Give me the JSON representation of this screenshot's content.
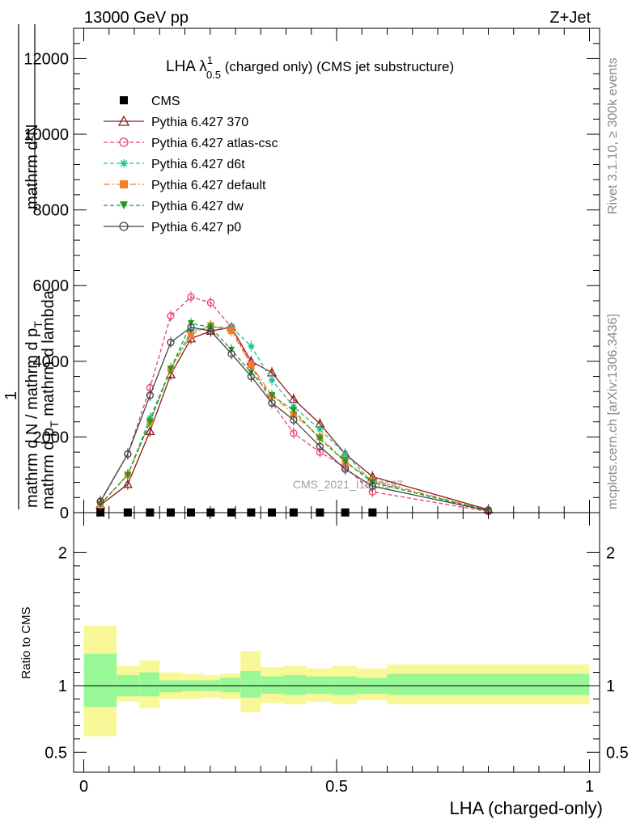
{
  "header": {
    "left": "13000 GeV pp",
    "right": "Z+Jet"
  },
  "side_labels": {
    "rivet": "Rivet 3.1.10, ≥ 300k events",
    "mcplots": "mcplots.cern.ch [arXiv:1306.3436]"
  },
  "watermark": "CMS_2021_I1920187",
  "chart_data": [
    {
      "type": "line",
      "title_main": "LHA λ",
      "title_sup": "1",
      "title_sub": "0.5",
      "title_rest": " (charged only) (CMS jet substructure)",
      "ylabel_top": "mathrm d²N",
      "ylabel_top2": "mathrm d p",
      "ylabel_top2_sub": "T",
      "ylabel_top3": " mathrm d lambda",
      "ylabel_one": "1",
      "ylabel_bottom": "mathrm d N / mathrm d p",
      "ylabel_bottom_sub": "T",
      "xlabel": "",
      "xlim": [
        -0.02,
        1.02
      ],
      "ylim": [
        0,
        12800
      ],
      "y_tick_values": [
        0,
        2000,
        4000,
        6000,
        8000,
        10000,
        12000
      ],
      "y_tick_labels": [
        "0",
        "2000",
        "4000",
        "6000",
        "8000",
        "10000",
        "12000"
      ],
      "legend_position": "top-left",
      "x": [
        0.033,
        0.087,
        0.131,
        0.172,
        0.212,
        0.251,
        0.292,
        0.331,
        0.372,
        0.415,
        0.467,
        0.517,
        0.571,
        0.8
      ],
      "series": [
        {
          "name": "CMS",
          "color": "#000000",
          "marker": "square",
          "dash": "none",
          "values": [
            5,
            5,
            5,
            5,
            5,
            5,
            5,
            5,
            5,
            5,
            5,
            5,
            5,
            null
          ]
        },
        {
          "name": "Pythia 6.427 370",
          "color": "#8b1a1a",
          "marker": "triangle-open",
          "dash": "solid",
          "values": [
            200,
            750,
            2150,
            3650,
            4600,
            4800,
            4900,
            4000,
            3700,
            3000,
            2350,
            1550,
            950,
            80
          ]
        },
        {
          "name": "Pythia 6.427 atlas-csc",
          "color": "#e8416a",
          "marker": "circle-open",
          "dash": "dashed",
          "values": [
            280,
            1550,
            3300,
            5200,
            5700,
            5550,
            4900,
            3900,
            2900,
            2100,
            1600,
            1200,
            550,
            30
          ]
        },
        {
          "name": "Pythia 6.427 d6t",
          "color": "#18c49a",
          "marker": "star",
          "dash": "dashed",
          "values": [
            220,
            1000,
            2500,
            3800,
            4800,
            4900,
            4900,
            4400,
            3500,
            2800,
            2200,
            1550,
            800,
            40
          ]
        },
        {
          "name": "Pythia 6.427 default",
          "color": "#f07f2a",
          "marker": "square",
          "dash": "dashdot",
          "values": [
            230,
            1000,
            2400,
            3800,
            4700,
            4950,
            4800,
            3900,
            3100,
            2600,
            2000,
            1350,
            850,
            60
          ]
        },
        {
          "name": "Pythia 6.427 dw",
          "color": "#1a9e1a",
          "marker": "triangle-down",
          "dash": "dashed",
          "values": [
            220,
            1000,
            2400,
            3800,
            5000,
            4900,
            4300,
            3700,
            3100,
            2700,
            1950,
            1350,
            800,
            60
          ]
        },
        {
          "name": "Pythia 6.427 p0",
          "color": "#444444",
          "marker": "circle-open",
          "dash": "solid",
          "values": [
            300,
            1550,
            3100,
            4500,
            4900,
            4800,
            4200,
            3600,
            2900,
            2450,
            1750,
            1150,
            700,
            50
          ]
        }
      ]
    },
    {
      "type": "area",
      "ylabel": "Ratio to CMS",
      "xlabel": "LHA (charged-only)",
      "xlim": [
        -0.02,
        1.02
      ],
      "ylim": [
        0.35,
        2.3
      ],
      "x_tick_values": [
        0,
        0.5,
        1
      ],
      "x_tick_labels": [
        "0",
        "0.5",
        "1"
      ],
      "y_tick_values": [
        0.5,
        1,
        2
      ],
      "y_tick_labels": [
        "0.5",
        "1",
        "2"
      ],
      "reference_line": 1,
      "bands": [
        {
          "x0": 0.0,
          "x1": 0.065,
          "inner": [
            0.84,
            1.24
          ],
          "outer": [
            0.62,
            1.45
          ]
        },
        {
          "x0": 0.065,
          "x1": 0.11,
          "inner": [
            0.92,
            1.08
          ],
          "outer": [
            0.88,
            1.15
          ]
        },
        {
          "x0": 0.11,
          "x1": 0.15,
          "inner": [
            0.92,
            1.1
          ],
          "outer": [
            0.83,
            1.19
          ]
        },
        {
          "x0": 0.15,
          "x1": 0.195,
          "inner": [
            0.95,
            1.04
          ],
          "outer": [
            0.9,
            1.1
          ]
        },
        {
          "x0": 0.195,
          "x1": 0.235,
          "inner": [
            0.96,
            1.04
          ],
          "outer": [
            0.9,
            1.09
          ]
        },
        {
          "x0": 0.235,
          "x1": 0.27,
          "inner": [
            0.96,
            1.04
          ],
          "outer": [
            0.91,
            1.08
          ]
        },
        {
          "x0": 0.27,
          "x1": 0.31,
          "inner": [
            0.95,
            1.06
          ],
          "outer": [
            0.9,
            1.09
          ]
        },
        {
          "x0": 0.31,
          "x1": 0.35,
          "inner": [
            0.91,
            1.11
          ],
          "outer": [
            0.8,
            1.26
          ]
        },
        {
          "x0": 0.35,
          "x1": 0.395,
          "inner": [
            0.94,
            1.07
          ],
          "outer": [
            0.87,
            1.14
          ]
        },
        {
          "x0": 0.395,
          "x1": 0.44,
          "inner": [
            0.93,
            1.08
          ],
          "outer": [
            0.86,
            1.15
          ]
        },
        {
          "x0": 0.44,
          "x1": 0.49,
          "inner": [
            0.94,
            1.07
          ],
          "outer": [
            0.88,
            1.13
          ]
        },
        {
          "x0": 0.49,
          "x1": 0.54,
          "inner": [
            0.93,
            1.07
          ],
          "outer": [
            0.86,
            1.15
          ]
        },
        {
          "x0": 0.54,
          "x1": 0.6,
          "inner": [
            0.94,
            1.06
          ],
          "outer": [
            0.89,
            1.13
          ]
        },
        {
          "x0": 0.6,
          "x1": 1.0,
          "inner": [
            0.93,
            1.09
          ],
          "outer": [
            0.86,
            1.16
          ]
        }
      ],
      "inner_color": "#98f898",
      "outer_color": "#f8f898"
    }
  ]
}
